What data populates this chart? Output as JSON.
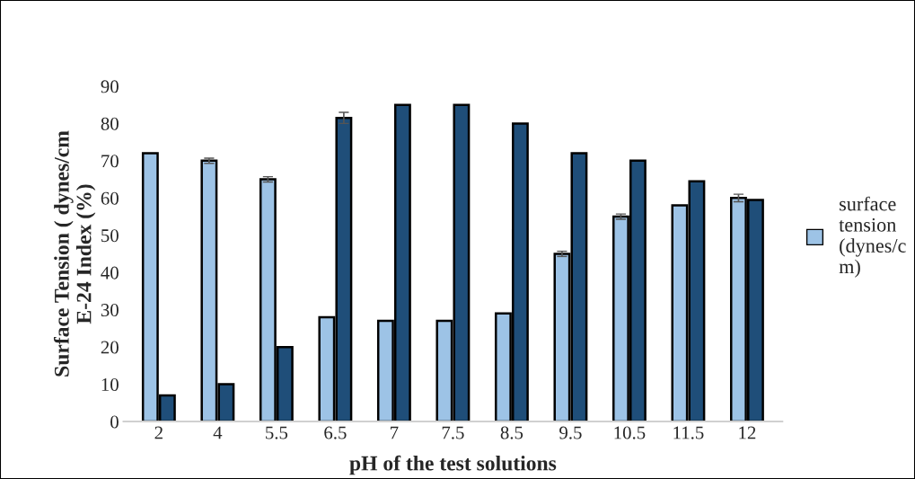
{
  "chart_data": {
    "type": "bar",
    "xlabel": "pH of the test solutions",
    "ylabel": "Surface Tension ( dynes/cm\nE-24 Index (%)",
    "categories": [
      "2",
      "4",
      "5.5",
      "6.5",
      "7",
      "7.5",
      "8.5",
      "9.5",
      "10.5",
      "11.5",
      "12"
    ],
    "series": [
      {
        "name": "surface tension (dynes/cm)",
        "color": "#9dc3e6",
        "values": [
          72,
          70,
          65,
          28,
          27,
          27,
          29,
          45,
          55,
          58,
          60
        ],
        "errors": [
          null,
          0.7,
          0.7,
          null,
          null,
          null,
          null,
          0.7,
          0.7,
          null,
          1
        ]
      },
      {
        "color": "#1f4e79",
        "values": [
          7,
          10,
          20,
          81.5,
          85,
          85,
          80,
          72,
          70,
          64.5,
          59.5
        ],
        "errors": [
          null,
          null,
          null,
          1.5,
          null,
          null,
          null,
          null,
          null,
          null,
          null
        ]
      }
    ],
    "ylim": [
      0,
      90
    ],
    "yticks": [
      0,
      10,
      20,
      30,
      40,
      50,
      60,
      70,
      80,
      90
    ],
    "grid": false,
    "legend": "right"
  }
}
